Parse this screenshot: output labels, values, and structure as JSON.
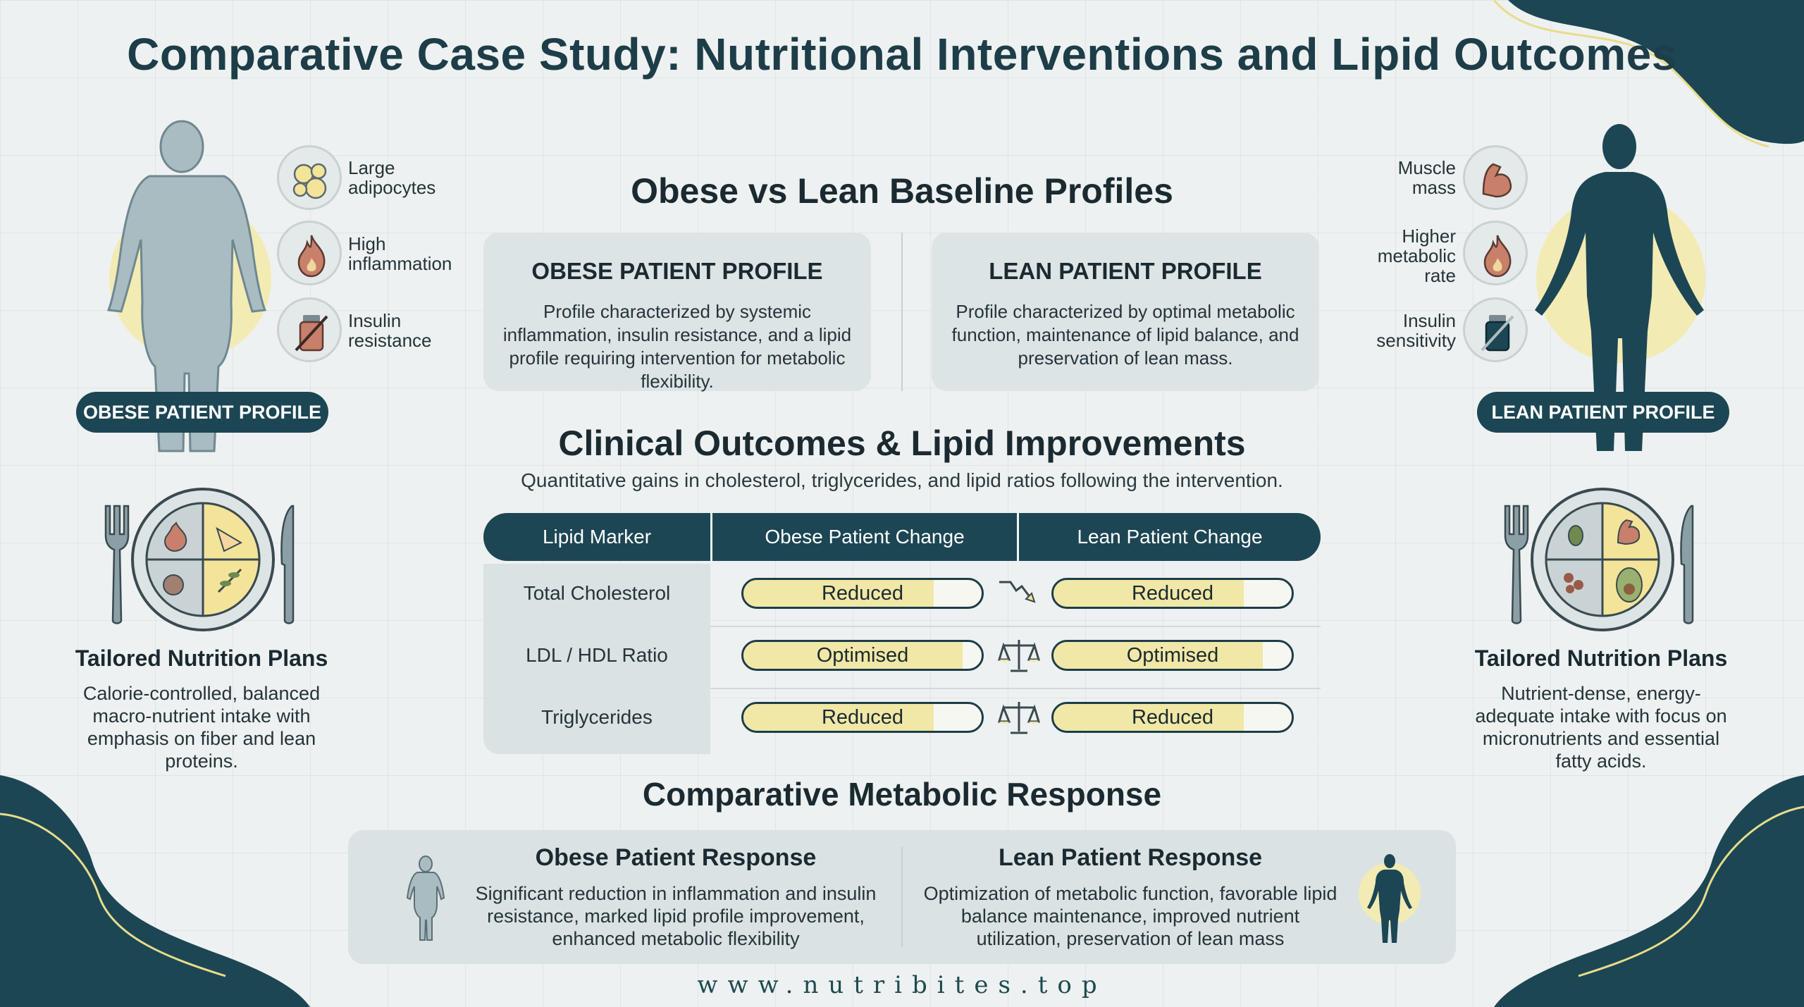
{
  "title": "Comparative Case Study: Nutritional Interventions and Lipid Outcomes",
  "baseline": {
    "heading": "Obese vs Lean Baseline Profiles",
    "obese": {
      "title": "OBESE PATIENT PROFILE",
      "text": "Profile characterized by systemic inflammation, insulin resistance, and a lipid profile requiring intervention for metabolic flexibility."
    },
    "lean": {
      "title": "LEAN PATIENT PROFILE",
      "text": "Profile characterized by optimal metabolic function, maintenance of lipid balance, and preservation of lean mass."
    }
  },
  "left_panel": {
    "traits": [
      {
        "label": "Large adipocytes",
        "icon": "adipocytes-icon"
      },
      {
        "label": "High inflammation",
        "icon": "flame-icon"
      },
      {
        "label": "Insulin resistance",
        "icon": "insulin-blocked-icon"
      }
    ],
    "pill": "OBESE PATIENT PROFILE",
    "nutrition_title": "Tailored Nutrition Plans",
    "nutrition_text": "Calorie-controlled, balanced macro-nutrient intake with emphasis on fiber and lean proteins."
  },
  "right_panel": {
    "traits": [
      {
        "label": "Muscle mass",
        "icon": "muscle-icon"
      },
      {
        "label": "Higher metabolic rate",
        "icon": "flame-icon"
      },
      {
        "label": "Insulin sensitivity",
        "icon": "insulin-icon"
      }
    ],
    "pill": "LEAN PATIENT PROFILE",
    "nutrition_title": "Tailored Nutrition Plans",
    "nutrition_text": "Nutrient-dense, energy-adequate intake with focus on micronutrients and essential fatty acids."
  },
  "outcomes": {
    "heading": "Clinical Outcomes & Lipid Improvements",
    "subtitle": "Quantitative gains in cholesterol, triglycerides, and lipid ratios following the intervention.",
    "columns": [
      "Lipid Marker",
      "Obese Patient Change",
      "Lean Patient Change"
    ],
    "rows": [
      {
        "marker": "Total Cholesterol",
        "obese": "Reduced",
        "lean": "Reduced",
        "obese_fill": 0.8,
        "lean_fill": 0.8,
        "icon": "trend-down-icon"
      },
      {
        "marker": "LDL / HDL Ratio",
        "obese": "Optimised",
        "lean": "Optimised",
        "obese_fill": 0.92,
        "lean_fill": 0.88,
        "icon": "balance-scale-icon"
      },
      {
        "marker": "Triglycerides",
        "obese": "Reduced",
        "lean": "Reduced",
        "obese_fill": 0.8,
        "lean_fill": 0.8,
        "icon": "balance-scale-icon"
      }
    ]
  },
  "response": {
    "heading": "Comparative Metabolic Response",
    "obese": {
      "title": "Obese Patient Response",
      "text": "Significant reduction in inflammation and insulin resistance, marked lipid profile improvement, enhanced metabolic flexibility"
    },
    "lean": {
      "title": "Lean Patient Response",
      "text": "Optimization of metabolic function, favorable lipid balance maintenance, improved nutrient utilization, preservation of lean mass"
    }
  },
  "footer": "www.nutribites.top",
  "colors": {
    "accent": "#1c4654",
    "highlight": "#f1e7a6",
    "panel": "#dbe2e4"
  }
}
